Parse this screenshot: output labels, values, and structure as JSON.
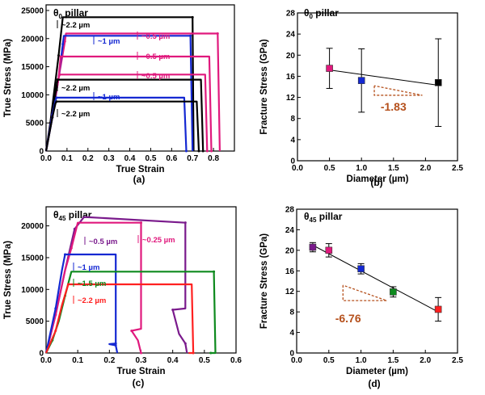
{
  "chart_data": [
    {
      "panel_label": "(a)",
      "type": "line",
      "title": "θ0 pillar",
      "title_main": "θ",
      "title_sub": "0",
      "title_rest": " pillar",
      "xlabel": "True Strain",
      "ylabel": "True Stress (MPa)",
      "xlim": [
        0.0,
        0.9
      ],
      "ylim": [
        0,
        26000
      ],
      "xticks": [
        "0.0",
        "0.1",
        "0.2",
        "0.3",
        "0.4",
        "0.5",
        "0.6",
        "0.7",
        "0.8"
      ],
      "yticks": [
        "0",
        "5000",
        "10000",
        "15000",
        "20000",
        "25000"
      ],
      "grid": false,
      "series": [
        {
          "color": "#000000",
          "x": [
            0,
            0.02,
            0.04,
            0.06,
            0.08,
            0.7,
            0.705
          ],
          "y": [
            0,
            5000,
            11000,
            17000,
            23800,
            23800,
            0
          ]
        },
        {
          "color": "#e0197d",
          "x": [
            0,
            0.03,
            0.06,
            0.09,
            0.095,
            0.82,
            0.83
          ],
          "y": [
            0,
            6000,
            13000,
            19500,
            20900,
            20900,
            0
          ]
        },
        {
          "color": "#1428d2",
          "x": [
            0,
            0.03,
            0.06,
            0.08,
            0.085,
            0.69,
            0.7
          ],
          "y": [
            0,
            6000,
            13000,
            19000,
            20500,
            20500,
            0
          ]
        },
        {
          "color": "#e0197d",
          "x": [
            0,
            0.03,
            0.06,
            0.07,
            0.78,
            0.79
          ],
          "y": [
            0,
            6500,
            13000,
            16800,
            16800,
            0
          ]
        },
        {
          "color": "#e0197d",
          "x": [
            0,
            0.03,
            0.06,
            0.065,
            0.76,
            0.77
          ],
          "y": [
            0,
            6500,
            13000,
            13600,
            13600,
            0
          ]
        },
        {
          "color": "#000000",
          "x": [
            0,
            0.03,
            0.05,
            0.055,
            0.74,
            0.75
          ],
          "y": [
            0,
            6500,
            11500,
            12700,
            12700,
            0
          ]
        },
        {
          "color": "#1428d2",
          "x": [
            0,
            0.03,
            0.045,
            0.05,
            0.66,
            0.67
          ],
          "y": [
            0,
            6500,
            9000,
            9500,
            9500,
            0
          ]
        },
        {
          "color": "#000000",
          "x": [
            0,
            0.03,
            0.045,
            0.05,
            0.72,
            0.73
          ],
          "y": [
            0,
            6000,
            8500,
            8800,
            8800,
            0
          ]
        }
      ],
      "annotations": [
        "~2.2 µm",
        "~0.5 µm",
        "~1 µm",
        "~0.5 µm",
        "~0.5 µm",
        "~2.2 µm",
        "~1 µm",
        "~2.2 µm"
      ]
    },
    {
      "panel_label": "(b)",
      "type": "scatter",
      "title": "θ0 pillar",
      "title_main": "θ",
      "title_sub": "0",
      "title_rest": " pillar",
      "xlabel": "Diameter (µm)",
      "ylabel": "Fracture Stress (GPa)",
      "xlim": [
        0.0,
        2.5
      ],
      "ylim": [
        0,
        28
      ],
      "xticks": [
        "0.0",
        "0.5",
        "1.0",
        "1.5",
        "2.0",
        "2.5"
      ],
      "yticks": [
        "0",
        "4",
        "8",
        "12",
        "16",
        "20",
        "24",
        "28"
      ],
      "grid": false,
      "points": [
        {
          "x": 0.5,
          "y": 17.5,
          "err": 3.8,
          "color": "#e0197d"
        },
        {
          "x": 1.0,
          "y": 15.2,
          "err": 6.0,
          "color": "#1428d2"
        },
        {
          "x": 2.2,
          "y": 14.8,
          "err": 8.3,
          "color": "#000000"
        }
      ],
      "fit_line": {
        "x": [
          0.5,
          2.2
        ],
        "y": [
          17.2,
          14.3
        ]
      },
      "slope_label": "-1.83"
    },
    {
      "panel_label": "(c)",
      "type": "line",
      "title": "θ45 pillar",
      "title_main": "θ",
      "title_sub": "45",
      "title_rest": " pillar",
      "xlabel": "True Strain",
      "ylabel": "True Stress (MPa)",
      "xlim": [
        0.0,
        0.6
      ],
      "ylim": [
        0,
        23000
      ],
      "xticks": [
        "0.0",
        "0.1",
        "0.2",
        "0.3",
        "0.4",
        "0.5",
        "0.6"
      ],
      "yticks": [
        "0",
        "5000",
        "10000",
        "15000",
        "20000"
      ],
      "grid": false,
      "series": [
        {
          "color": "#7a1a8c",
          "x": [
            0,
            0.03,
            0.06,
            0.09,
            0.12,
            0.44,
            0.44,
            0.4,
            0.42,
            0.44,
            0.445
          ],
          "y": [
            0,
            6000,
            13000,
            19500,
            21400,
            20500,
            7000,
            6800,
            3000,
            1500,
            0
          ]
        },
        {
          "color": "#e0197d",
          "x": [
            0,
            0.03,
            0.06,
            0.08,
            0.1,
            0.3,
            0.3,
            0.27,
            0.29,
            0.3
          ],
          "y": [
            0,
            6000,
            13000,
            16500,
            20500,
            20500,
            3800,
            3500,
            2000,
            0
          ]
        },
        {
          "color": "#1428d2",
          "x": [
            0,
            0.03,
            0.05,
            0.06,
            0.22,
            0.22,
            0.2,
            0.22,
            0.225
          ],
          "y": [
            0,
            7000,
            13000,
            15500,
            15500,
            1500,
            1400,
            1200,
            0
          ]
        },
        {
          "color": "#0e8a1e",
          "x": [
            0,
            0.02,
            0.04,
            0.06,
            0.08,
            0.53,
            0.535,
            0.52
          ],
          "y": [
            0,
            2000,
            5000,
            9000,
            12800,
            12800,
            0,
            0
          ]
        },
        {
          "color": "#ff2020",
          "x": [
            0,
            0.03,
            0.05,
            0.07,
            0.46,
            0.465,
            0.45
          ],
          "y": [
            0,
            3500,
            7500,
            10800,
            10800,
            0,
            0
          ]
        }
      ],
      "annotations": [
        "~0.5 µm",
        "~0.25 µm",
        "~1 µm",
        "~1.5 µm",
        "~2.2 µm"
      ]
    },
    {
      "panel_label": "(d)",
      "type": "scatter",
      "title": "θ45 pillar",
      "title_main": "θ",
      "title_sub": "45",
      "title_rest": " pillar",
      "xlabel": "Diameter (µm)",
      "ylabel": "Fracture Stress (GPa)",
      "xlim": [
        0.0,
        2.5
      ],
      "ylim": [
        0,
        28
      ],
      "xticks": [
        "0.0",
        "0.5",
        "1.0",
        "1.5",
        "2.0",
        "2.5"
      ],
      "yticks": [
        "0",
        "4",
        "8",
        "12",
        "16",
        "20",
        "24",
        "28"
      ],
      "grid": false,
      "points": [
        {
          "x": 0.25,
          "y": 20.6,
          "err": 0.9,
          "color": "#7a1a8c"
        },
        {
          "x": 0.5,
          "y": 20.0,
          "err": 1.3,
          "color": "#e0197d"
        },
        {
          "x": 1.0,
          "y": 16.4,
          "err": 1.0,
          "color": "#1428d2"
        },
        {
          "x": 1.5,
          "y": 11.9,
          "err": 1.0,
          "color": "#0e8a1e"
        },
        {
          "x": 2.2,
          "y": 8.5,
          "err": 2.3,
          "color": "#ff2020"
        }
      ],
      "fit_line": {
        "x": [
          0.25,
          2.2
        ],
        "y": [
          21.0,
          8.0
        ]
      },
      "slope_label": "-6.76"
    }
  ]
}
